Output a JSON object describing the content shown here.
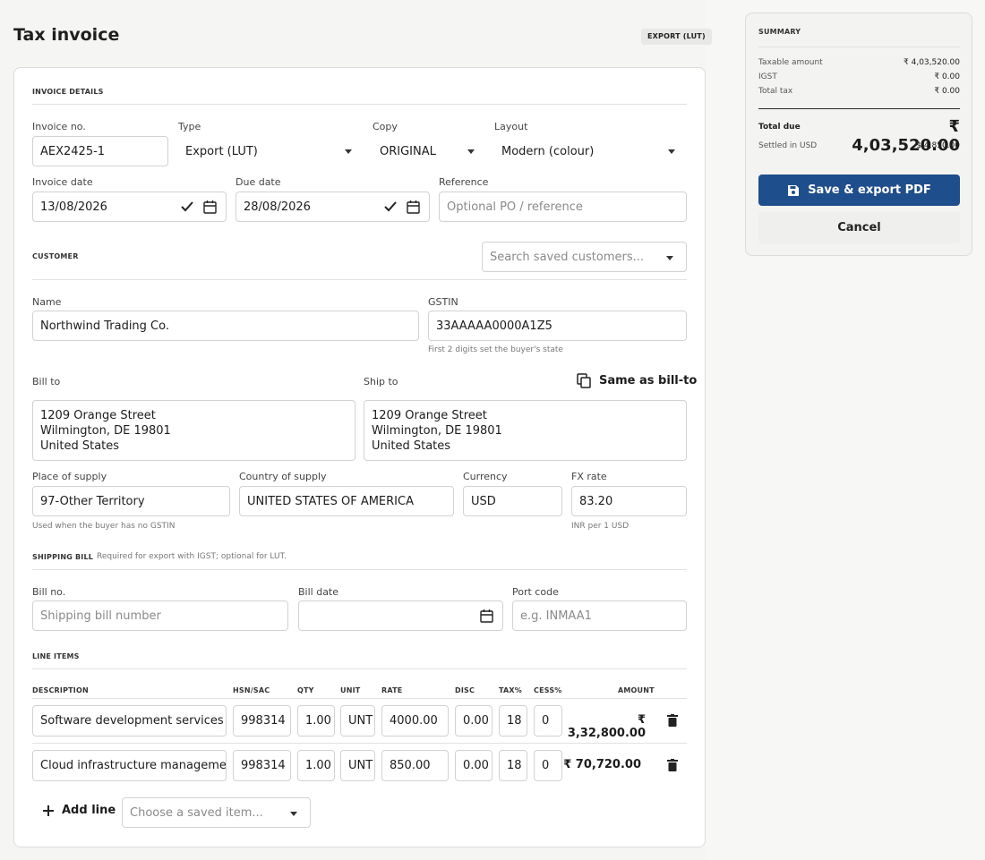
{
  "header": {
    "title": "Tax invoice",
    "badge": "EXPORT (LUT)"
  },
  "invoice": {
    "section": "INVOICE DETAILS",
    "number_label": "Invoice no.",
    "number": "AEX2425-1",
    "type_label": "Type",
    "type": "Export (LUT)",
    "copy_label": "Copy",
    "copy": "ORIGINAL",
    "layout_label": "Layout",
    "layout": "Modern (colour)",
    "date_label": "Invoice date",
    "date": "13/08/2026",
    "due_label": "Due date",
    "due": "28/08/2026",
    "ref_label": "Reference",
    "ref_placeholder": "Optional PO / reference"
  },
  "customer": {
    "section": "CUSTOMER",
    "search_placeholder": "Search saved customers...",
    "name_label": "Name",
    "name": "Northwind Trading Co.",
    "gstin_label": "GSTIN",
    "gstin": "33AAAAA0000A1Z5",
    "gstin_hint": "First 2 digits set the buyer's state",
    "bill_label": "Bill to",
    "ship_label": "Ship to",
    "same_as": "Same as bill-to",
    "bill_to": "1209 Orange Street\nWilmington, DE 19801\nUnited States",
    "ship_to": "1209 Orange Street\nWilmington, DE 19801\nUnited States",
    "place_label": "Place of supply",
    "place": "97-Other Territory",
    "place_hint": "Used when the buyer has no GSTIN",
    "country_label": "Country of supply",
    "country": "UNITED STATES OF AMERICA",
    "currency_label": "Currency",
    "currency": "USD",
    "fx_label": "FX rate",
    "fx": "83.20",
    "fx_hint": "INR per 1 USD"
  },
  "shipping": {
    "section": "SHIPPING BILL",
    "note": "Required for export with IGST; optional for LUT.",
    "bill_no_label": "Bill no.",
    "bill_no_placeholder": "Shipping bill number",
    "bill_date_label": "Bill date",
    "port_label": "Port code",
    "port_placeholder": "e.g. INMAA1"
  },
  "lines": {
    "section": "LINE ITEMS",
    "headers": {
      "desc": "DESCRIPTION",
      "hsn": "HSN/SAC",
      "qty": "QTY",
      "unit": "UNIT",
      "rate": "RATE",
      "disc": "DISC",
      "tax": "TAX%",
      "cess": "CESS%",
      "amount": "AMOUNT"
    },
    "rows": [
      {
        "desc": "Software development services — M",
        "hsn": "998314",
        "qty": "1.00",
        "unit": "UNT",
        "rate": "4000.00",
        "disc": "0.00",
        "tax": "18",
        "cess": "0",
        "amount": "₹ 3,32,800.00"
      },
      {
        "desc": "Cloud infrastructure management",
        "hsn": "998314",
        "qty": "1.00",
        "unit": "UNT",
        "rate": "850.00",
        "disc": "0.00",
        "tax": "18",
        "cess": "0",
        "amount": "₹ 70,720.00"
      }
    ],
    "add_line": "Add line",
    "saved_item_placeholder": "Choose a saved item..."
  },
  "summary": {
    "section": "SUMMARY",
    "taxable_label": "Taxable amount",
    "taxable": "₹ 4,03,520.00",
    "igst_label": "IGST",
    "igst": "₹ 0.00",
    "total_tax_label": "Total tax",
    "total_tax": "₹ 0.00",
    "total_due_label": "Total due",
    "total_due": "₹ 4,03,520.00",
    "settled_label": "Settled in USD",
    "settled": "$ 4,850.00",
    "save_button": "Save & export PDF",
    "cancel_button": "Cancel"
  },
  "colors": {
    "primary": "#1f4e8c",
    "border": "#d2d2d0"
  }
}
